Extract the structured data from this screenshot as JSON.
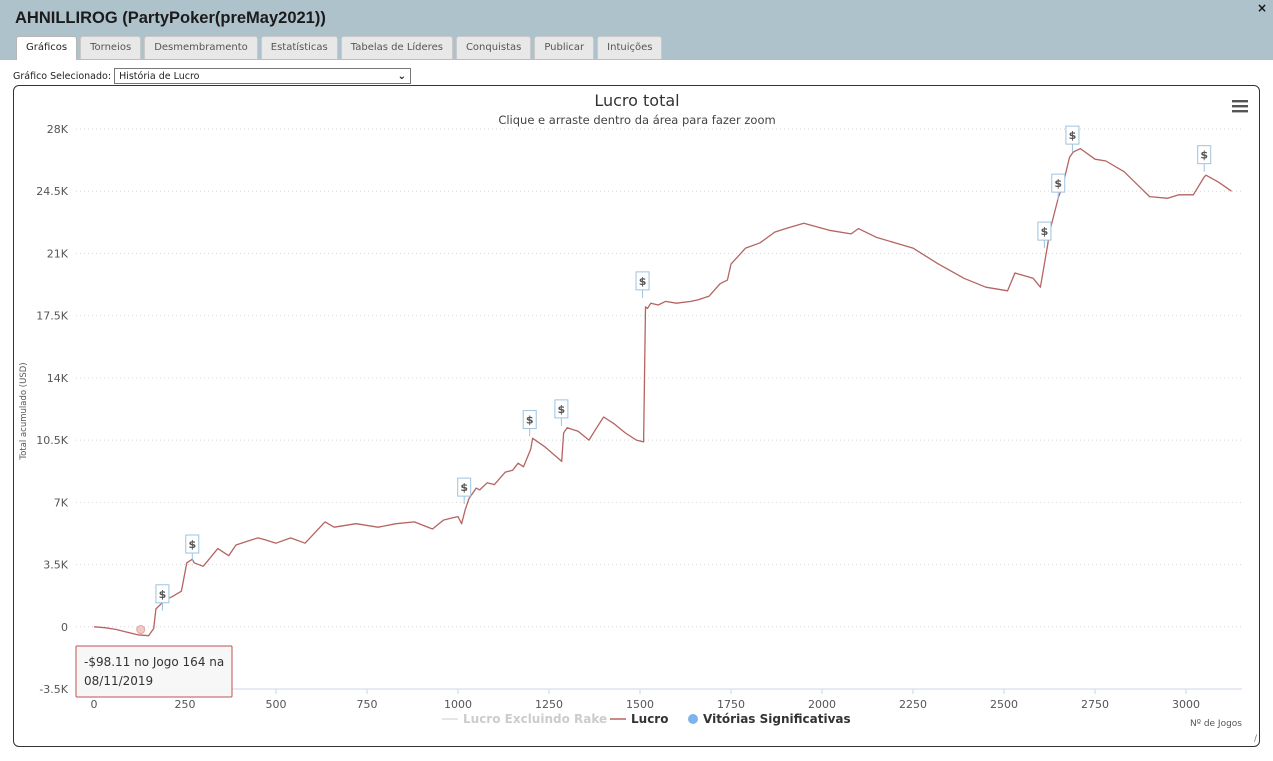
{
  "window": {
    "title": "AHNILLIROG (PartyPoker(preMay2021))",
    "close_label": "×"
  },
  "tabs": [
    {
      "label": "Gráficos",
      "active": true
    },
    {
      "label": "Torneios",
      "active": false
    },
    {
      "label": "Desmembramento",
      "active": false
    },
    {
      "label": "Estatísticas",
      "active": false
    },
    {
      "label": "Tabelas de Líderes",
      "active": false
    },
    {
      "label": "Conquistas",
      "active": false
    },
    {
      "label": "Publicar",
      "active": false
    },
    {
      "label": "Intuições",
      "active": false
    }
  ],
  "selector": {
    "label": "Gráfico Selecionado:",
    "value": "História de Lucro"
  },
  "colors": {
    "profit_line": "#b56461",
    "rake_line": "#e6e6e6",
    "significant": "#7cb5ec",
    "tooltip_border": "#c0504d",
    "header_bg": "#aec2cc"
  },
  "tooltip": {
    "line1": "-$98.11 no Jogo 164 na",
    "line2": "08/11/2019",
    "x": 164,
    "y": -98.11
  },
  "chart_data": {
    "type": "line",
    "title": "Lucro total",
    "subtitle": "Clique e arraste dentro da área para fazer zoom",
    "xlabel": "Nº de Jogos",
    "ylabel": "Total acumulado (USD)",
    "xlim": [
      0,
      3150
    ],
    "ylim": [
      -3500,
      28000
    ],
    "x_ticks": [
      0,
      250,
      500,
      750,
      1000,
      1250,
      1500,
      1750,
      2000,
      2250,
      2500,
      2750,
      3000
    ],
    "x_tick_labels": [
      "0",
      "250",
      "500",
      "750",
      "1000",
      "1250",
      "1500",
      "1750",
      "2000",
      "2250",
      "2500",
      "2750",
      "3000"
    ],
    "y_ticks": [
      -3500,
      0,
      3500,
      7000,
      10500,
      14000,
      17500,
      21000,
      24500,
      28000
    ],
    "y_tick_labels": [
      "-3.5K",
      "0",
      "3.5K",
      "7K",
      "10.5K",
      "14K",
      "17.5K",
      "21K",
      "24.5K",
      "28K"
    ],
    "grid": true,
    "legend_position": "bottom-center",
    "legend": [
      {
        "label": "Lucro Excluindo Rake",
        "type": "line",
        "color": "#dddddd",
        "text_color": "#cccccc"
      },
      {
        "label": "Lucro",
        "type": "line",
        "color": "#b56461",
        "text_color": "#333333"
      },
      {
        "label": "Vitórias Significativas",
        "type": "dot",
        "color": "#7cb5ec",
        "text_color": "#333333"
      }
    ],
    "series": [
      {
        "name": "Lucro",
        "x": [
          0,
          30,
          60,
          90,
          120,
          150,
          164,
          170,
          185,
          195,
          215,
          240,
          255,
          270,
          275,
          300,
          340,
          370,
          390,
          420,
          450,
          470,
          500,
          540,
          580,
          630,
          635,
          660,
          720,
          780,
          830,
          880,
          930,
          960,
          980,
          1000,
          1010,
          1020,
          1030,
          1050,
          1060,
          1080,
          1100,
          1130,
          1150,
          1165,
          1180,
          1200,
          1205,
          1240,
          1285,
          1290,
          1300,
          1330,
          1360,
          1375,
          1400,
          1430,
          1460,
          1490,
          1510,
          1515,
          1520,
          1530,
          1550,
          1570,
          1600,
          1640,
          1660,
          1690,
          1720,
          1740,
          1750,
          1790,
          1830,
          1870,
          1900,
          1950,
          2020,
          2080,
          2100,
          2150,
          2200,
          2250,
          2320,
          2390,
          2450,
          2510,
          2530,
          2580,
          2600,
          2620,
          2625,
          2650,
          2660,
          2680,
          2690,
          2710,
          2750,
          2780,
          2830,
          2900,
          2950,
          2980,
          3020,
          3050,
          3055,
          3090,
          3125
        ],
        "y": [
          0,
          -50,
          -150,
          -300,
          -450,
          -500,
          -98.11,
          1000,
          1300,
          1500,
          1700,
          2000,
          3600,
          3800,
          3600,
          3400,
          4400,
          4000,
          4600,
          4800,
          5000,
          4900,
          4700,
          5000,
          4700,
          5800,
          5900,
          5600,
          5800,
          5600,
          5800,
          5900,
          5500,
          6000,
          6100,
          6200,
          5800,
          6600,
          7200,
          7800,
          7700,
          8100,
          8000,
          8700,
          8800,
          9200,
          9000,
          10000,
          10600,
          10100,
          9300,
          10900,
          11200,
          11000,
          10500,
          11000,
          11800,
          11400,
          10900,
          10500,
          10400,
          18000,
          17900,
          18200,
          18100,
          18300,
          18200,
          18300,
          18400,
          18600,
          19300,
          19500,
          20400,
          21300,
          21600,
          22200,
          22400,
          22700,
          22300,
          22100,
          22400,
          21900,
          21600,
          21300,
          20400,
          19600,
          19100,
          18900,
          19900,
          19600,
          19100,
          21500,
          22200,
          24200,
          24700,
          26400,
          26700,
          26900,
          26300,
          26200,
          25600,
          24200,
          24100,
          24300,
          24300,
          25300,
          25400,
          25000,
          24500
        ]
      }
    ],
    "significant_wins": [
      {
        "x": 188,
        "y": 1800
      },
      {
        "x": 270,
        "y": 4600
      },
      {
        "x": 1017,
        "y": 7800
      },
      {
        "x": 1197,
        "y": 11600
      },
      {
        "x": 1284,
        "y": 12200
      },
      {
        "x": 1507,
        "y": 19400
      },
      {
        "x": 2611,
        "y": 22200
      },
      {
        "x": 2649,
        "y": 24900
      },
      {
        "x": 2688,
        "y": 27600
      },
      {
        "x": 3050,
        "y": 26500
      }
    ]
  }
}
